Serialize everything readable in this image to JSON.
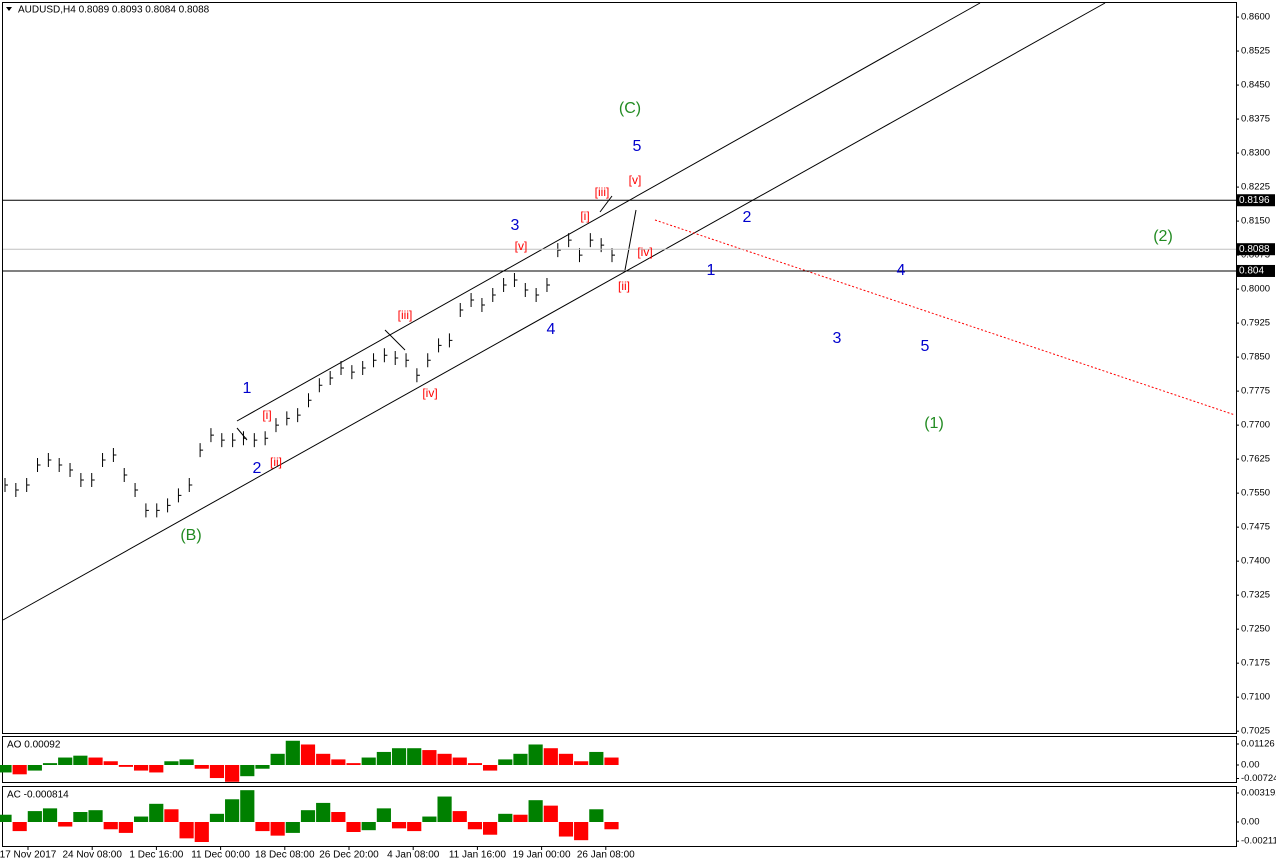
{
  "chart_data": [
    {
      "type": "price",
      "title": "AUDUSD,H4  0.8089 0.8093 0.8084 0.8088",
      "color": "#000000",
      "values": [
        0.7568,
        0.7557,
        0.7568,
        0.7612,
        0.7623,
        0.7612,
        0.7601,
        0.7579,
        0.7579,
        0.7623,
        0.7634,
        0.759,
        0.7557,
        0.7512,
        0.7512,
        0.7523,
        0.7545,
        0.7568,
        0.7645,
        0.7678,
        0.7667,
        0.7667,
        0.7671,
        0.7667,
        0.7671,
        0.77,
        0.7715,
        0.7722,
        0.7755,
        0.7788,
        0.7804,
        0.7826,
        0.7817,
        0.7826,
        0.7843,
        0.7854,
        0.7848,
        0.7843,
        0.781,
        0.7843,
        0.7876,
        0.7887,
        0.7954,
        0.7976,
        0.7965,
        0.7987,
        0.8009,
        0.802,
        0.7998,
        0.7987,
        0.8009,
        0.8086,
        0.8108,
        0.8075,
        0.8108,
        0.8097,
        0.8075
      ],
      "ylim": [
        0.7021,
        0.8631
      ],
      "yticks": [
        {
          "value": 0.86,
          "label": "0.8600"
        },
        {
          "value": 0.8525,
          "label": "0.8525"
        },
        {
          "value": 0.845,
          "label": "0.8450"
        },
        {
          "value": 0.8375,
          "label": "0.8375"
        },
        {
          "value": 0.83,
          "label": "0.8300"
        },
        {
          "value": 0.8225,
          "label": "0.8225"
        },
        {
          "value": 0.815,
          "label": "0.8150"
        },
        {
          "value": 0.8075,
          "label": "0.8075"
        },
        {
          "value": 0.8,
          "label": "0.8000"
        },
        {
          "value": 0.7925,
          "label": "0.7925"
        },
        {
          "value": 0.785,
          "label": "0.7850"
        },
        {
          "value": 0.7775,
          "label": "0.7775"
        },
        {
          "value": 0.77,
          "label": "0.7700"
        },
        {
          "value": 0.7625,
          "label": "0.7625"
        },
        {
          "value": 0.755,
          "label": "0.7550"
        },
        {
          "value": 0.7475,
          "label": "0.7475"
        },
        {
          "value": 0.74,
          "label": "0.7400"
        },
        {
          "value": 0.7325,
          "label": "0.7325"
        },
        {
          "value": 0.725,
          "label": "0.7250"
        },
        {
          "value": 0.7175,
          "label": "0.7175"
        },
        {
          "value": 0.71,
          "label": "0.7100"
        },
        {
          "value": 0.7025,
          "label": "0.7025"
        }
      ],
      "levels": [
        {
          "value": 0.8196,
          "color": "#000000"
        },
        {
          "value": 0.8088,
          "color": "#c0c0c0"
        },
        {
          "value": 0.804,
          "color": "#000000"
        }
      ],
      "x_labels": [
        "17 Nov 2017",
        "24 Nov 08:00",
        "1 Dec 16:00",
        "11 Dec 00:00",
        "18 Dec 08:00",
        "26 Dec 20:00",
        "4 Jan 08:00",
        "11 Jan 16:00",
        "19 Jan 00:00",
        "26 Jan 08:00"
      ],
      "annotations": [
        {
          "text": "(C)",
          "color": "#228b22"
        },
        {
          "text": "5",
          "color": "#0000cd"
        },
        {
          "text": "[v]",
          "color": "#ff0000"
        },
        {
          "text": "[iii]",
          "color": "#ff0000"
        },
        {
          "text": "[i]",
          "color": "#ff0000"
        },
        {
          "text": "3",
          "color": "#0000cd"
        },
        {
          "text": "[v]",
          "color": "#ff0000"
        },
        {
          "text": "[iv]",
          "color": "#ff0000"
        },
        {
          "text": "[ii]",
          "color": "#ff0000"
        },
        {
          "text": "2",
          "color": "#0000cd"
        },
        {
          "text": "1",
          "color": "#0000cd"
        },
        {
          "text": "4",
          "color": "#0000cd"
        },
        {
          "text": "3",
          "color": "#0000cd"
        },
        {
          "text": "5",
          "color": "#0000cd"
        },
        {
          "text": "(1)",
          "color": "#228b22"
        },
        {
          "text": "(2)",
          "color": "#228b22"
        },
        {
          "text": "4",
          "color": "#0000cd"
        },
        {
          "text": "[iii]",
          "color": "#ff0000"
        },
        {
          "text": "[iv]",
          "color": "#ff0000"
        },
        {
          "text": "1",
          "color": "#0000cd"
        },
        {
          "text": "[i]",
          "color": "#ff0000"
        },
        {
          "text": "2",
          "color": "#0000cd"
        },
        {
          "text": "[ii]",
          "color": "#ff0000"
        },
        {
          "text": "(B)",
          "color": "#228b22"
        }
      ]
    },
    {
      "type": "histogram",
      "title": "AO 0.00092",
      "up_color": "#008000",
      "down_color": "#ff0000",
      "values": [
        -0.004,
        -0.005,
        -0.003,
        0.001,
        0.004,
        0.005,
        0.004,
        0.002,
        -0.001,
        -0.003,
        -0.004,
        0.002,
        0.003,
        -0.002,
        -0.007,
        -0.009,
        -0.006,
        -0.002,
        0.006,
        0.013,
        0.011,
        0.006,
        0.003,
        0.001,
        0.004,
        0.007,
        0.009,
        0.009,
        0.008,
        0.006,
        0.004,
        0.001,
        -0.003,
        0.003,
        0.006,
        0.011,
        0.009,
        0.006,
        0.002,
        0.007,
        0.004
      ],
      "ylim": [
        -0.00912,
        0.01555
      ],
      "yticks": [
        0.01126,
        {
          "value": 0,
          "label": "0.00"
        },
        -0.00724
      ]
    },
    {
      "type": "histogram",
      "title": "AC -0.000814",
      "up_color": "#008000",
      "down_color": "#ff0000",
      "values": [
        0.0008,
        -0.001,
        0.0012,
        0.0015,
        -0.0005,
        0.0011,
        0.0013,
        -0.0008,
        -0.0012,
        0.0006,
        0.002,
        0.0014,
        -0.0018,
        -0.0022,
        0.0009,
        0.0025,
        0.0035,
        -0.001,
        -0.0015,
        -0.0012,
        0.0013,
        0.0021,
        0.0011,
        -0.0011,
        -0.0009,
        0.0015,
        -0.0007,
        -0.001,
        0.0006,
        0.0028,
        0.0012,
        -0.0008,
        -0.0014,
        0.0009,
        0.0008,
        0.0024,
        0.0018,
        -0.0016,
        -0.002,
        0.0014,
        -0.0008
      ],
      "ylim": [
        -0.00264,
        0.00396
      ],
      "yticks": [
        0.003192,
        {
          "value": 0,
          "label": "0.00"
        },
        -0.00211
      ]
    }
  ]
}
